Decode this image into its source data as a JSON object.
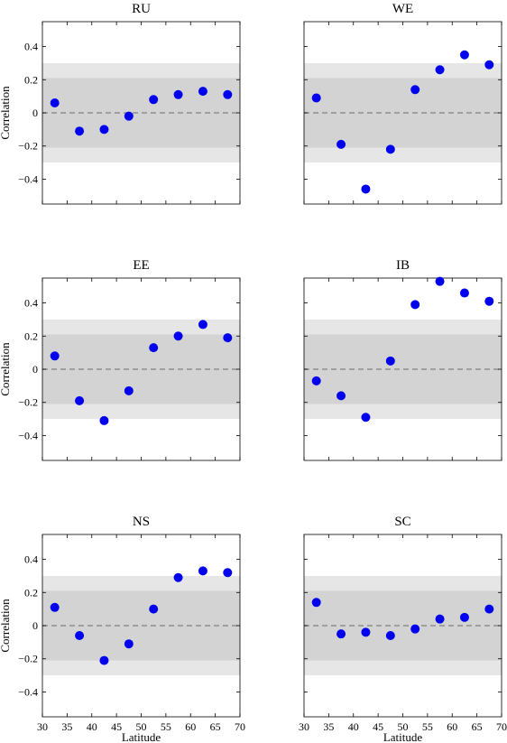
{
  "chart_data": [
    {
      "type": "scatter",
      "title": "RU",
      "x": [
        32.5,
        37.5,
        42.5,
        47.5,
        52.5,
        57.5,
        62.5,
        67.5
      ],
      "y": [
        0.06,
        -0.11,
        -0.1,
        -0.02,
        0.08,
        0.11,
        0.13,
        0.11
      ],
      "xlim": [
        30,
        70
      ],
      "ylim": [
        -0.55,
        0.55
      ],
      "xticks": [
        30,
        35,
        40,
        45,
        50,
        55,
        60,
        65,
        70
      ],
      "yticks": [
        -0.4,
        -0.2,
        0,
        0.2,
        0.4
      ],
      "band_inner": [
        -0.21,
        0.21
      ],
      "band_outer": [
        -0.3,
        0.3
      ],
      "ylabel": "Correlation",
      "xlabel": "",
      "show_xtick_labels": false,
      "show_ytick_labels": true
    },
    {
      "type": "scatter",
      "title": "WE",
      "x": [
        32.5,
        37.5,
        42.5,
        47.5,
        52.5,
        57.5,
        62.5,
        67.5
      ],
      "y": [
        0.09,
        -0.19,
        -0.46,
        -0.22,
        0.14,
        0.26,
        0.35,
        0.29
      ],
      "xlim": [
        30,
        70
      ],
      "ylim": [
        -0.55,
        0.55
      ],
      "xticks": [
        30,
        35,
        40,
        45,
        50,
        55,
        60,
        65,
        70
      ],
      "yticks": [
        -0.4,
        -0.2,
        0,
        0.2,
        0.4
      ],
      "band_inner": [
        -0.21,
        0.21
      ],
      "band_outer": [
        -0.3,
        0.3
      ],
      "ylabel": "",
      "xlabel": "",
      "show_xtick_labels": false,
      "show_ytick_labels": false
    },
    {
      "type": "scatter",
      "title": "EE",
      "x": [
        32.5,
        37.5,
        42.5,
        47.5,
        52.5,
        57.5,
        62.5,
        67.5
      ],
      "y": [
        0.08,
        -0.19,
        -0.31,
        -0.13,
        0.13,
        0.2,
        0.27,
        0.19
      ],
      "xlim": [
        30,
        70
      ],
      "ylim": [
        -0.55,
        0.55
      ],
      "xticks": [
        30,
        35,
        40,
        45,
        50,
        55,
        60,
        65,
        70
      ],
      "yticks": [
        -0.4,
        -0.2,
        0,
        0.2,
        0.4
      ],
      "band_inner": [
        -0.21,
        0.21
      ],
      "band_outer": [
        -0.3,
        0.3
      ],
      "ylabel": "Correlation",
      "xlabel": "",
      "show_xtick_labels": false,
      "show_ytick_labels": true
    },
    {
      "type": "scatter",
      "title": "IB",
      "x": [
        32.5,
        37.5,
        42.5,
        47.5,
        52.5,
        57.5,
        62.5,
        67.5
      ],
      "y": [
        -0.07,
        -0.16,
        -0.29,
        0.05,
        0.39,
        0.53,
        0.46,
        0.41
      ],
      "xlim": [
        30,
        70
      ],
      "ylim": [
        -0.55,
        0.55
      ],
      "xticks": [
        30,
        35,
        40,
        45,
        50,
        55,
        60,
        65,
        70
      ],
      "yticks": [
        -0.4,
        -0.2,
        0,
        0.2,
        0.4
      ],
      "band_inner": [
        -0.21,
        0.21
      ],
      "band_outer": [
        -0.3,
        0.3
      ],
      "ylabel": "",
      "xlabel": "",
      "show_xtick_labels": false,
      "show_ytick_labels": false
    },
    {
      "type": "scatter",
      "title": "NS",
      "x": [
        32.5,
        37.5,
        42.5,
        47.5,
        52.5,
        57.5,
        62.5,
        67.5
      ],
      "y": [
        0.11,
        -0.06,
        -0.21,
        -0.11,
        0.1,
        0.29,
        0.33,
        0.32
      ],
      "xlim": [
        30,
        70
      ],
      "ylim": [
        -0.55,
        0.55
      ],
      "xticks": [
        30,
        35,
        40,
        45,
        50,
        55,
        60,
        65,
        70
      ],
      "yticks": [
        -0.4,
        -0.2,
        0,
        0.2,
        0.4
      ],
      "band_inner": [
        -0.21,
        0.21
      ],
      "band_outer": [
        -0.3,
        0.3
      ],
      "ylabel": "Correlation",
      "xlabel": "Latitude",
      "show_xtick_labels": true,
      "show_ytick_labels": true
    },
    {
      "type": "scatter",
      "title": "SC",
      "x": [
        32.5,
        37.5,
        42.5,
        47.5,
        52.5,
        57.5,
        62.5,
        67.5
      ],
      "y": [
        0.14,
        -0.05,
        -0.04,
        -0.06,
        -0.02,
        0.04,
        0.05,
        0.1
      ],
      "xlim": [
        30,
        70
      ],
      "ylim": [
        -0.55,
        0.55
      ],
      "xticks": [
        30,
        35,
        40,
        45,
        50,
        55,
        60,
        65,
        70
      ],
      "yticks": [
        -0.4,
        -0.2,
        0,
        0.2,
        0.4
      ],
      "band_inner": [
        -0.21,
        0.21
      ],
      "band_outer": [
        -0.3,
        0.3
      ],
      "ylabel": "",
      "xlabel": "Latitude",
      "show_xtick_labels": true,
      "show_ytick_labels": false
    }
  ],
  "colors": {
    "marker": "#0000ee",
    "band_inner": "#d3d3d3",
    "band_outer": "#e6e6e6",
    "zero_line": "#808080",
    "axes": "#000000"
  }
}
